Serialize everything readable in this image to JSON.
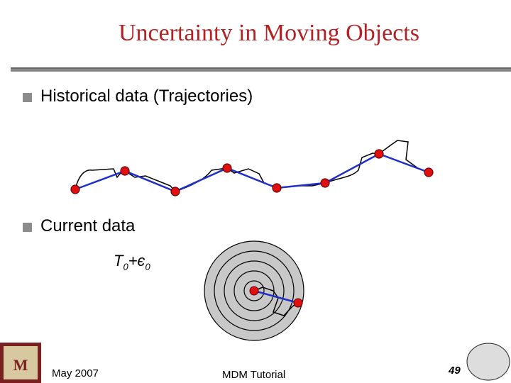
{
  "header": {
    "title": "Uncertainty in Moving Objects"
  },
  "bullets": [
    "Historical data (Trajectories)",
    "Current data"
  ],
  "uncertainty_label": {
    "base": "T",
    "base_sub": "0",
    "plus": "+є",
    "eps_sub": "0"
  },
  "footer": {
    "date": "May 2007",
    "center": "MDM Tutorial",
    "page": "49"
  }
}
